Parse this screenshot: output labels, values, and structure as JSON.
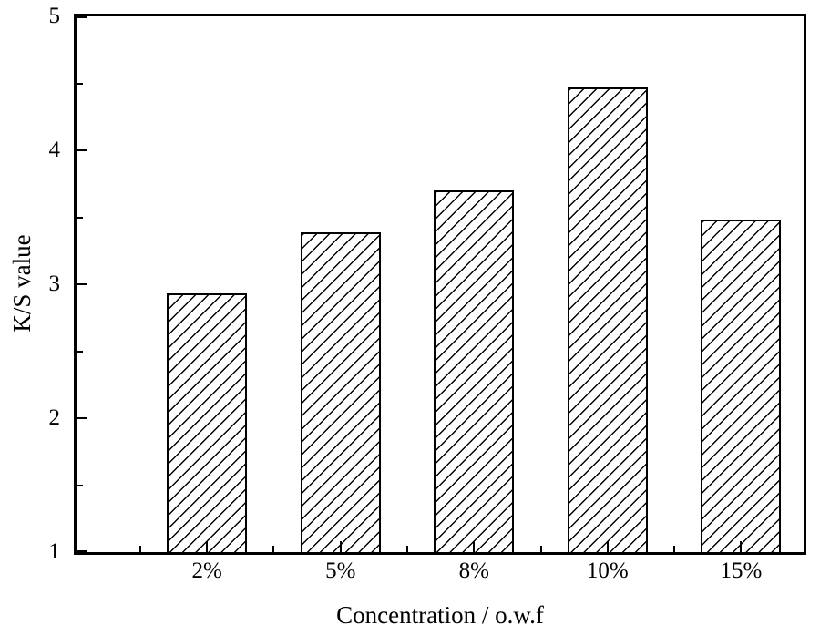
{
  "figure": {
    "background_color": "#ffffff",
    "frame_color": "#000000"
  },
  "chart_data": {
    "type": "bar",
    "categories": [
      "2%",
      "5%",
      "8%",
      "10%",
      "15%"
    ],
    "values": [
      2.93,
      3.39,
      3.7,
      4.47,
      3.48
    ],
    "title": "",
    "xlabel": "Concentration / o.w.f",
    "ylabel": "K/S value",
    "ylim": [
      1,
      5
    ],
    "yticks": [
      1,
      2,
      3,
      4,
      5
    ],
    "y_minor_step": 0.5,
    "grid": false,
    "legend": null,
    "bar_fill_color": "#ffffff",
    "bar_hatch": "diagonal-forward-slash",
    "bar_edge_color": "#000000",
    "axis_color": "#000000",
    "text_color": "#000000"
  }
}
